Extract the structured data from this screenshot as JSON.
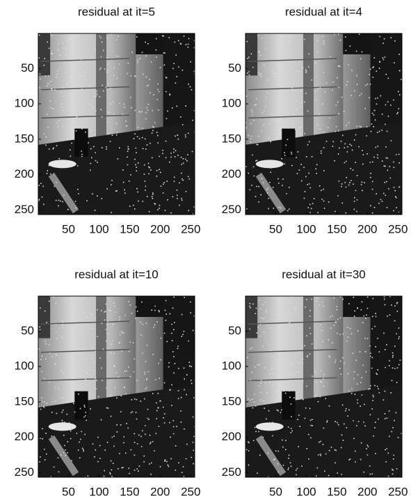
{
  "chart_data": [
    {
      "type": "image",
      "title": "residual at it=5",
      "xlim": [
        0.5,
        256.5
      ],
      "ylim": [
        0.5,
        256.5
      ],
      "yreverse": true,
      "xticks": [
        50,
        100,
        150,
        200,
        250
      ],
      "yticks": [
        50,
        100,
        150,
        200,
        250
      ],
      "grid": false
    },
    {
      "type": "image",
      "title": "residual at it=4",
      "xlim": [
        0.5,
        256.5
      ],
      "ylim": [
        0.5,
        256.5
      ],
      "yreverse": true,
      "xticks": [
        50,
        100,
        150,
        200,
        250
      ],
      "yticks": [
        50,
        100,
        150,
        200,
        250
      ],
      "grid": false
    },
    {
      "type": "image",
      "title": "residual at it=10",
      "xlim": [
        0.5,
        256.5
      ],
      "ylim": [
        0.5,
        256.5
      ],
      "yreverse": true,
      "xticks": [
        50,
        100,
        150,
        200,
        250
      ],
      "yticks": [
        50,
        100,
        150,
        200,
        250
      ],
      "grid": false
    },
    {
      "type": "image",
      "title": "residual at it=30",
      "xlim": [
        0.5,
        256.5
      ],
      "ylim": [
        0.5,
        256.5
      ],
      "yreverse": true,
      "xticks": [
        50,
        100,
        150,
        200,
        250
      ],
      "yticks": [
        50,
        100,
        150,
        200,
        250
      ],
      "grid": false
    }
  ]
}
